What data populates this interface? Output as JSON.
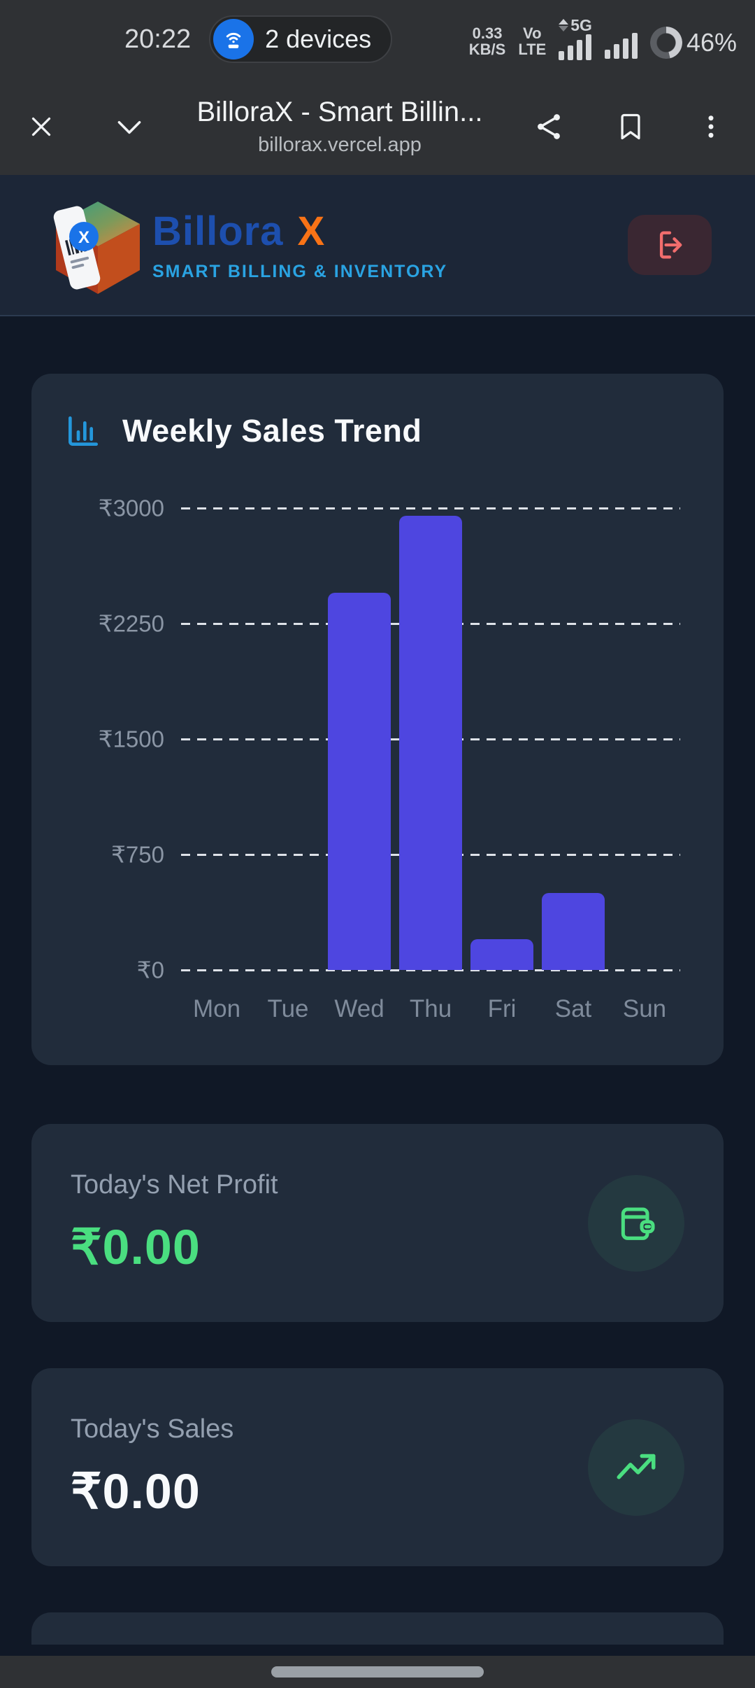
{
  "status_bar": {
    "time": "20:22",
    "devices_label": "2 devices",
    "net_speed_value": "0.33",
    "net_speed_unit": "KB/S",
    "volte_line1": "Vo",
    "volte_line2": "LTE",
    "network_type": "5G",
    "battery_percent": "46%",
    "battery_level": 46
  },
  "browser": {
    "page_title": "BilloraX - Smart Billin...",
    "url": "billorax.vercel.app"
  },
  "app_header": {
    "brand_name": "Billora",
    "brand_suffix": "X",
    "logo_mark_letter": "X",
    "tagline": "SMART BILLING & INVENTORY"
  },
  "chart_data": {
    "type": "bar",
    "title": "Weekly Sales Trend",
    "categories": [
      "Mon",
      "Tue",
      "Wed",
      "Thu",
      "Fri",
      "Sat",
      "Sun"
    ],
    "values": [
      0,
      0,
      2450,
      2950,
      200,
      500,
      0
    ],
    "currency": "₹",
    "xlabel": "",
    "ylabel": "",
    "ylim": [
      0,
      3000
    ],
    "ytick_step": 750,
    "ytick_labels": [
      "₹0",
      "₹750",
      "₹1500",
      "₹2250",
      "₹3000"
    ],
    "grid": "horizontal-dashed",
    "legend": false,
    "bar_color": "#4e46e0"
  },
  "cards": {
    "net_profit": {
      "label": "Today's Net Profit",
      "value": "₹0.00",
      "value_color": "#4ade80"
    },
    "sales": {
      "label": "Today's Sales",
      "value": "₹0.00",
      "value_color": "#f8fafc"
    }
  },
  "colors": {
    "system_bar_bg": "#2f3134",
    "header_bg": "#1c2637",
    "page_bg": "#101826",
    "card_bg": "#212c3b",
    "accent_green": "#4ade80",
    "accent_blue": "#2497db",
    "logout_red": "#f26d6d"
  }
}
